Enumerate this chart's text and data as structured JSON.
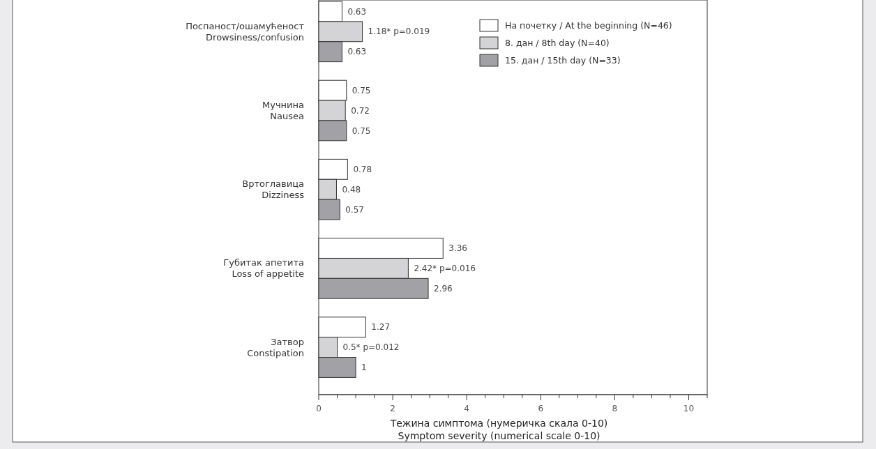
{
  "chart_data": {
    "type": "bar",
    "orientation": "horizontal",
    "categories": [
      "Поспаност/ошамућеност\nDrowsiness/confusion",
      "Мучнина\nNausea",
      "Вртоглавица\nDizziness",
      "Губитак апетита\nLoss of appetite",
      "Затвор\nConstipation"
    ],
    "series": [
      {
        "name": "На почетку / At the beginning (N=46)",
        "color": "#ffffff",
        "values": [
          0.63,
          0.75,
          0.78,
          3.36,
          1.27
        ],
        "value_labels": [
          "0.63",
          "0.75",
          "0.78",
          "3.36",
          "1.27"
        ]
      },
      {
        "name": "8. дан / 8th day (N=40)",
        "color": "#d4d4d6",
        "values": [
          1.18,
          0.72,
          0.48,
          2.42,
          0.5
        ],
        "value_labels": [
          "1.18* p=0.019",
          "0.72",
          "0.48",
          "2.42* p=0.016",
          "0.5* p=0.012"
        ]
      },
      {
        "name": "15. дан / 15th day (N=33)",
        "color": "#a2a2a6",
        "values": [
          0.63,
          0.75,
          0.57,
          2.96,
          1
        ],
        "value_labels": [
          "0.63",
          "0.75",
          "0.57",
          "2.96",
          "1"
        ]
      }
    ],
    "xlabel": "Тежина симптома (нумеричка скала 0-10)\nSymptom severity (numerical scale 0-10)",
    "xlim": [
      0,
      10.5
    ],
    "xticks": [
      0,
      {
        "value": 0.5,
        "label": null
      },
      {
        "value": 1,
        "label": null
      },
      {
        "value": 1.5,
        "label": null
      },
      2,
      {
        "value": 2.5,
        "label": null
      },
      {
        "value": 3,
        "label": null
      },
      {
        "value": 3.5,
        "label": null
      },
      4,
      {
        "value": 4.5,
        "label": null
      },
      {
        "value": 5,
        "label": null
      },
      {
        "value": 5.5,
        "label": null
      },
      6,
      {
        "value": 6.5,
        "label": null
      },
      {
        "value": 7,
        "label": null
      },
      {
        "value": 7.5,
        "label": null
      },
      8,
      {
        "value": 8.5,
        "label": null
      },
      {
        "value": 9,
        "label": null
      },
      {
        "value": 9.5,
        "label": null
      },
      10,
      {
        "value": 10.5,
        "label": null
      }
    ],
    "legend": "top right",
    "grid": false
  }
}
